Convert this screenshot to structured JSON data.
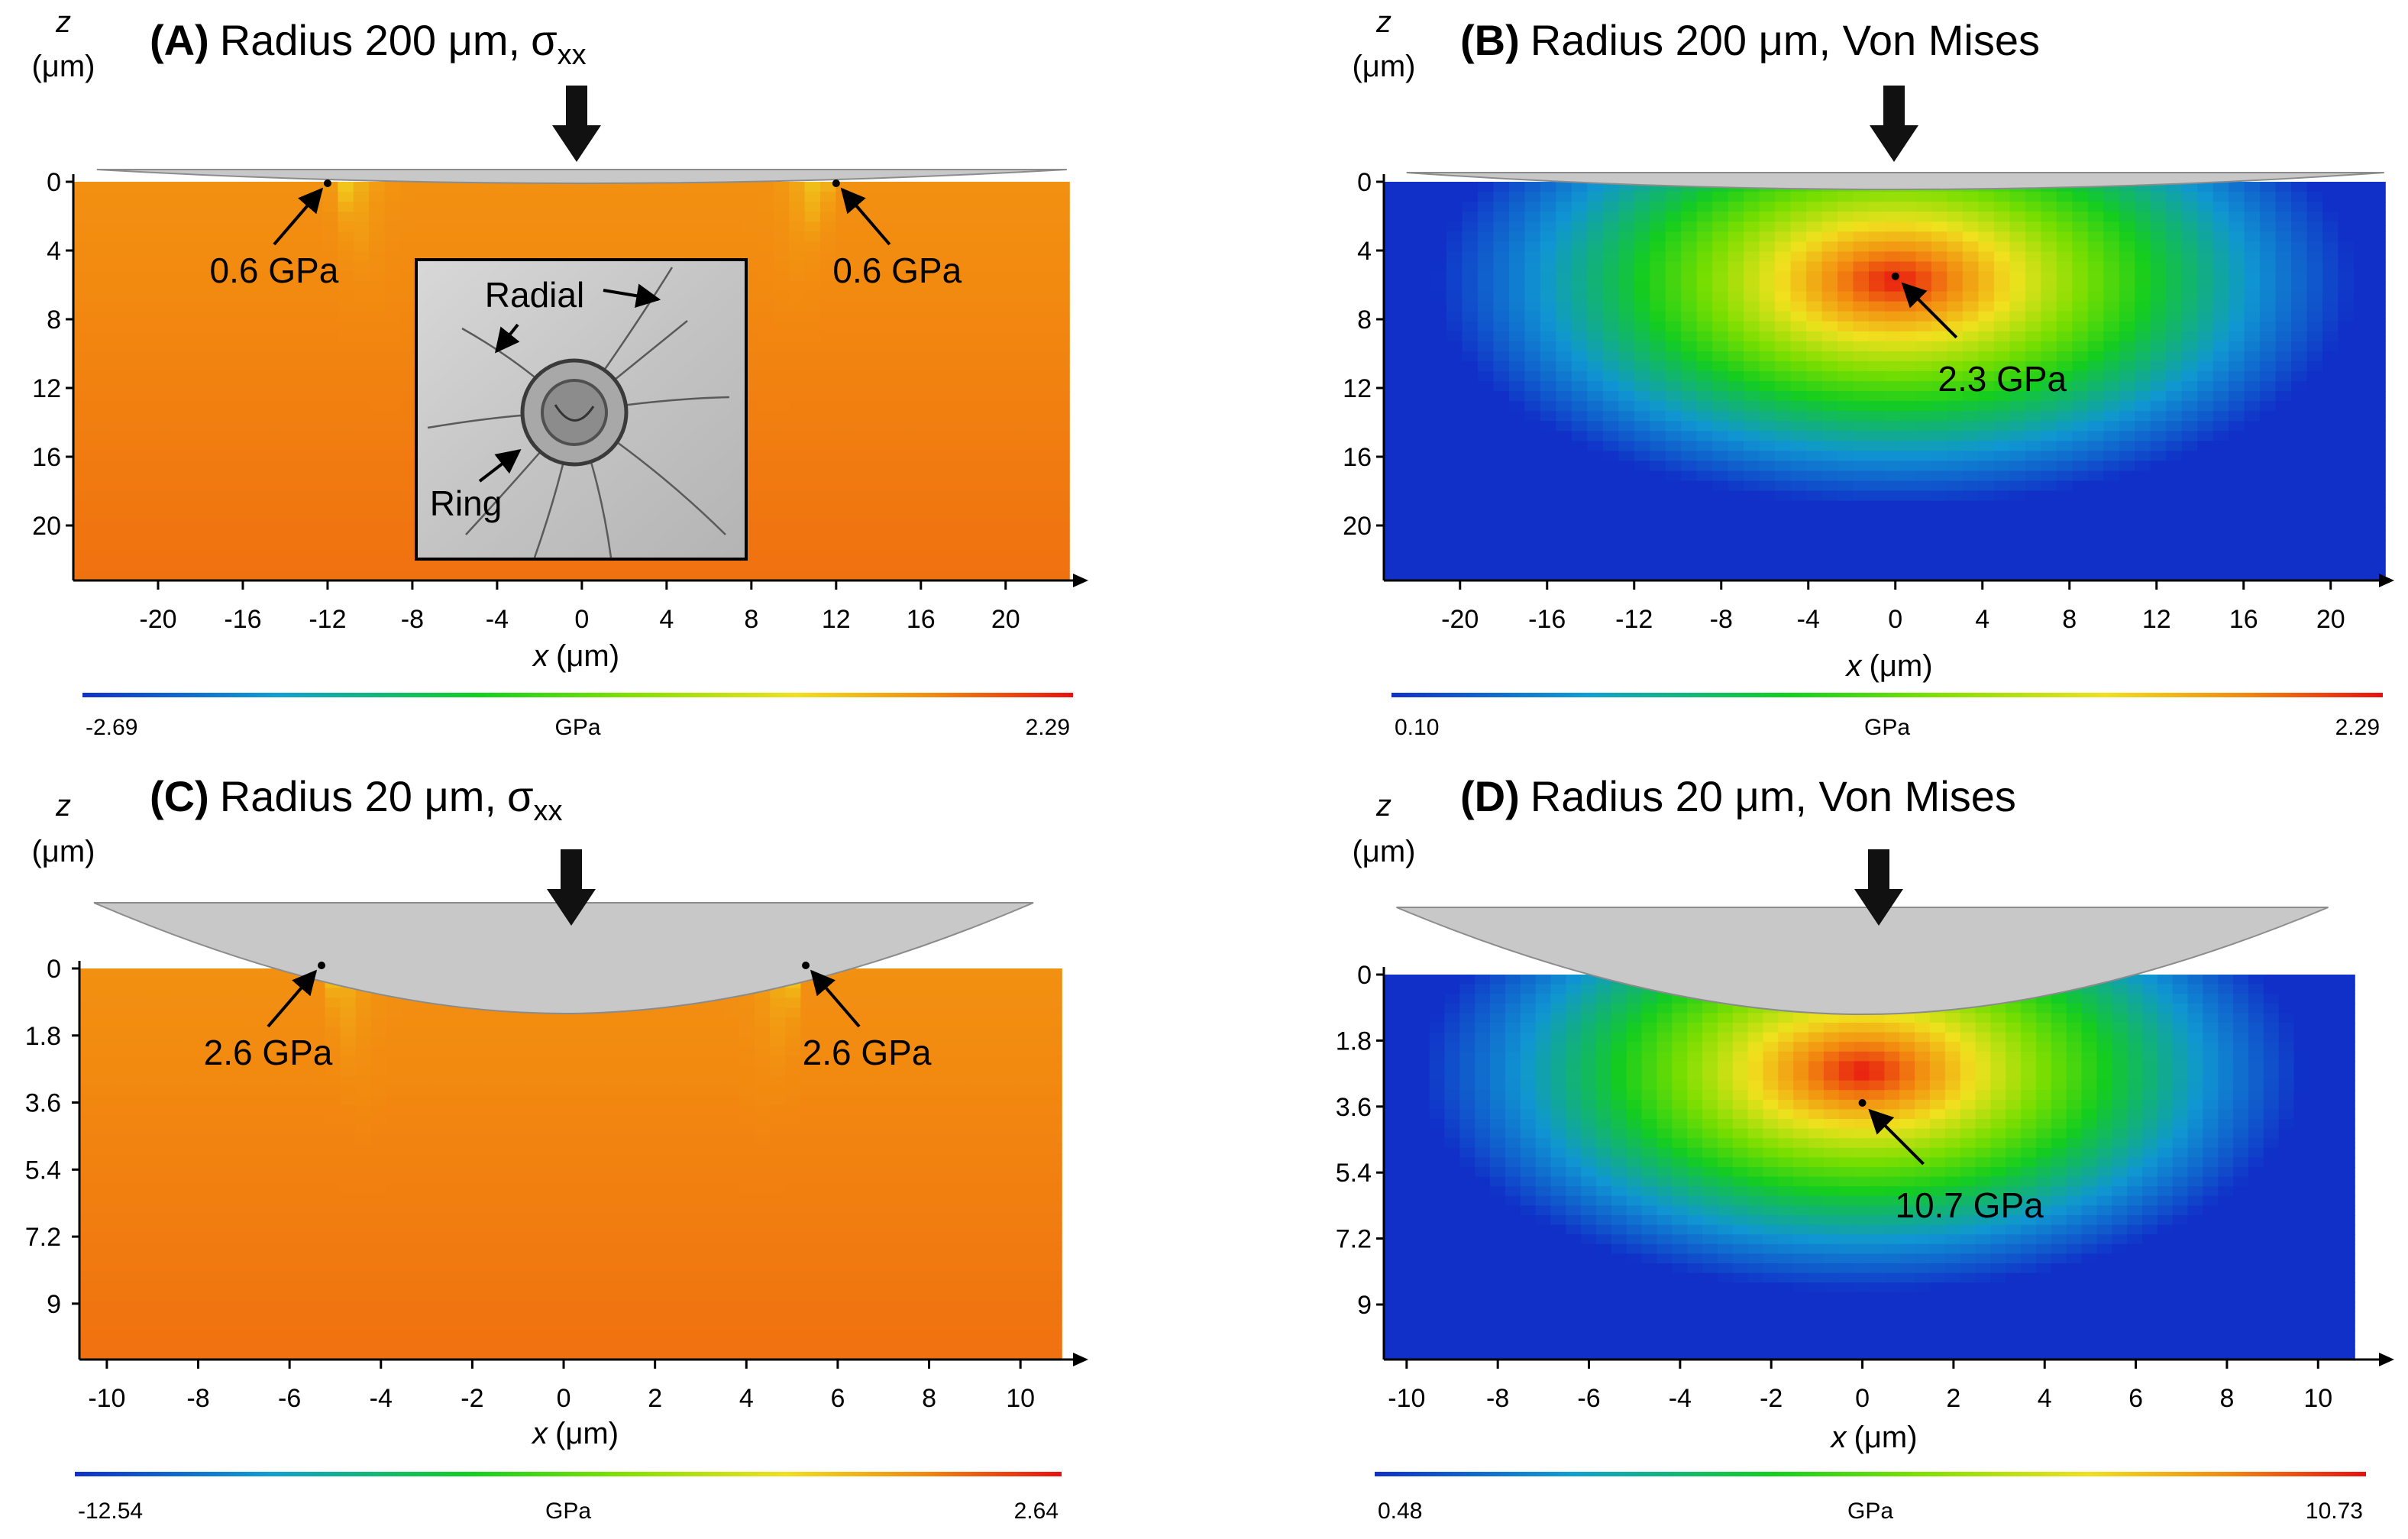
{
  "chart_data": [
    {
      "type": "heatmap",
      "panel_id": "A",
      "title_bold": "(A)",
      "title_rest": "Radius 200 μm,",
      "title_sym": "σ",
      "title_sub": "xx",
      "z_label_main": "z",
      "z_label_unit": "(μm)",
      "x_label_main": "x",
      "x_label_unit": "(μm)",
      "x_range": [
        -24,
        23
      ],
      "z_range": [
        0,
        23.2
      ],
      "x_ticks": [
        -20,
        -16,
        -12,
        -8,
        -4,
        0,
        4,
        8,
        12,
        16,
        20
      ],
      "z_ticks": [
        0,
        4,
        8,
        12,
        16,
        20
      ],
      "z_tick_labels": [
        "0",
        "4",
        "8",
        "12",
        "16",
        "20"
      ],
      "field": "sigma_xx",
      "contact_half_width": 12,
      "colorbar": {
        "min": -2.69,
        "max": 2.29,
        "min_label": "-2.69",
        "max_label": "2.29",
        "unit": "GPa"
      },
      "annotations": [
        {
          "text": "0.6 GPa",
          "x": -12,
          "z": 0
        },
        {
          "text": "0.6 GPa",
          "x": 12,
          "z": 0
        }
      ],
      "inset": {
        "labels": [
          "Radial",
          "Ring"
        ]
      }
    },
    {
      "type": "heatmap",
      "panel_id": "B",
      "title_bold": "(B)",
      "title_rest": "Radius 200 μm, Von Mises",
      "z_label_main": "z",
      "z_label_unit": "(μm)",
      "x_label_main": "x",
      "x_label_unit": "(μm)",
      "x_range": [
        -23.5,
        22.5
      ],
      "z_range": [
        0,
        23.2
      ],
      "x_ticks": [
        -20,
        -16,
        -12,
        -8,
        -4,
        0,
        4,
        8,
        12,
        16,
        20
      ],
      "z_ticks": [
        0,
        4,
        8,
        12,
        16,
        20
      ],
      "z_tick_labels": [
        "0",
        "4",
        "8",
        "12",
        "16",
        "20"
      ],
      "field": "von_mises",
      "contact_half_width": 12,
      "colorbar": {
        "min": 0.1,
        "max": 2.29,
        "min_label": "0.10",
        "max_label": "2.29",
        "unit": "GPa"
      },
      "annotations": [
        {
          "text": "2.3 GPa",
          "x": 0,
          "z": 5.5
        }
      ]
    },
    {
      "type": "heatmap",
      "panel_id": "C",
      "title_bold": "(C)",
      "title_rest": "Radius 20 μm,",
      "title_sym": "σ",
      "title_sub": "xx",
      "z_label_main": "z",
      "z_label_unit": "(μm)",
      "x_label_main": "x",
      "x_label_unit": "(μm)",
      "x_range": [
        -10.6,
        10.9
      ],
      "z_range": [
        0,
        10.5
      ],
      "x_ticks": [
        -10,
        -8,
        -6,
        -4,
        -2,
        0,
        2,
        4,
        6,
        8,
        10
      ],
      "z_ticks": [
        0,
        1.8,
        3.6,
        5.4,
        7.2,
        9
      ],
      "z_tick_labels": [
        "0",
        "1.8",
        "3.6",
        "5.4",
        "7.2",
        "9"
      ],
      "field": "sigma_xx",
      "contact_half_width": 5.3,
      "colorbar": {
        "min": -12.54,
        "max": 2.64,
        "min_label": "-12.54",
        "max_label": "2.64",
        "unit": "GPa"
      },
      "annotations": [
        {
          "text": "2.6 GPa",
          "x": -5.3,
          "z": 0
        },
        {
          "text": "2.6 GPa",
          "x": 5.3,
          "z": 0
        }
      ]
    },
    {
      "type": "heatmap",
      "panel_id": "D",
      "title_bold": "(D)",
      "title_rest": "Radius 20 μm, Von Mises",
      "z_label_main": "z",
      "z_label_unit": "(μm)",
      "x_label_main": "x",
      "x_label_unit": "(μm)",
      "x_range": [
        -10.5,
        10.8
      ],
      "z_range": [
        0,
        10.5
      ],
      "x_ticks": [
        -10,
        -8,
        -6,
        -4,
        -2,
        0,
        2,
        4,
        6,
        8,
        10
      ],
      "z_ticks": [
        0,
        1.8,
        3.6,
        5.4,
        7.2,
        9
      ],
      "z_tick_labels": [
        "0",
        "1.8",
        "3.6",
        "5.4",
        "7.2",
        "9"
      ],
      "field": "von_mises",
      "contact_half_width": 5.5,
      "colorbar": {
        "min": 0.48,
        "max": 10.73,
        "min_label": "0.48",
        "max_label": "10.73",
        "unit": "GPa"
      },
      "annotations": [
        {
          "text": "10.7 GPa",
          "x": 0,
          "z": 3.5
        }
      ]
    }
  ]
}
